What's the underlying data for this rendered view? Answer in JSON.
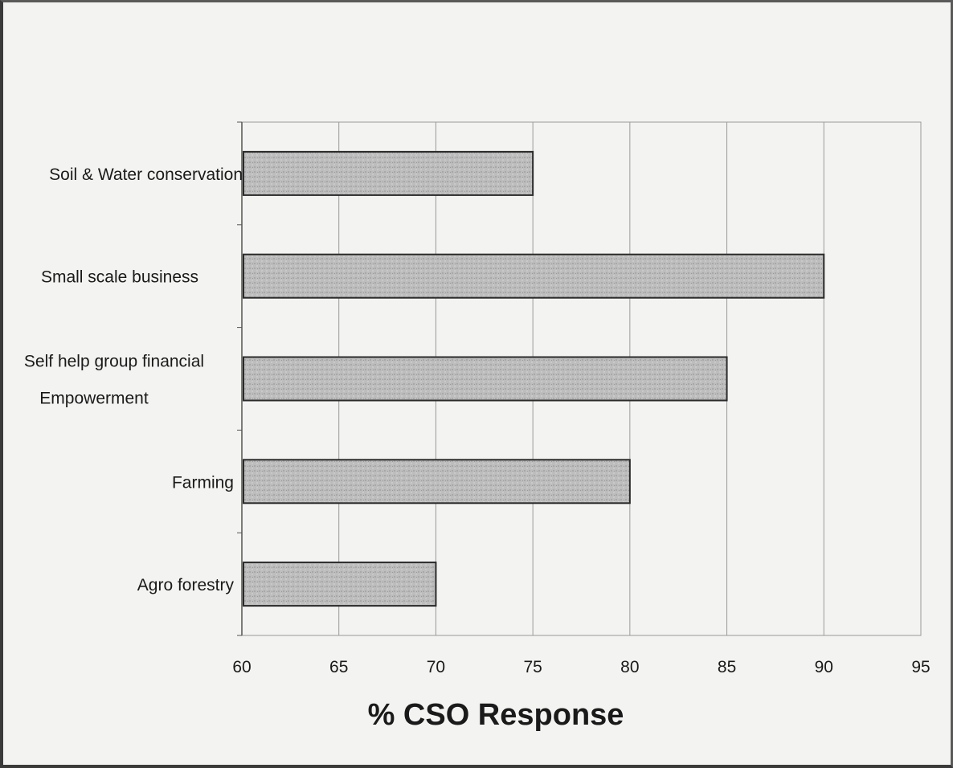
{
  "chart_data": {
    "type": "bar",
    "orientation": "horizontal",
    "categories": [
      "Soil & Water conservation",
      "Small scale business",
      "Self help group financial Empowerment",
      "Farming",
      "Agro forestry"
    ],
    "category_label_lines": [
      [
        "Soil & Water conservation"
      ],
      [
        "Small scale business"
      ],
      [
        "Self help group financial",
        "Empowerment"
      ],
      [
        "Farming"
      ],
      [
        "Agro forestry"
      ]
    ],
    "values": [
      75,
      90,
      85,
      80,
      70
    ],
    "xlabel": "% CSO Response",
    "ylabel": "",
    "xlim": [
      60,
      95
    ],
    "xticks": [
      60,
      65,
      70,
      75,
      80,
      85,
      90,
      95
    ],
    "grid": "vertical",
    "legend": "none",
    "colors": {
      "bar_fill": "#b8b8b8",
      "bar_stroke": "#2a2a2a",
      "grid": "#9a9a9a",
      "axis": "#555555"
    }
  }
}
